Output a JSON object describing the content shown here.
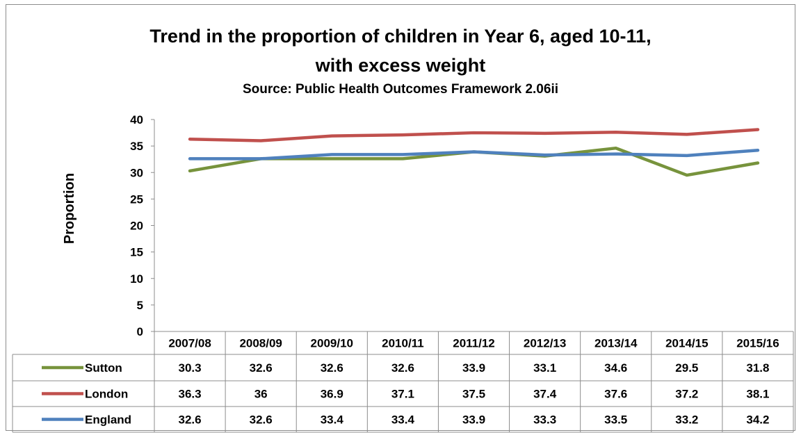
{
  "chart_data": {
    "type": "line",
    "title_line1": "Trend in the proportion of children in Year 6, aged 10-11,",
    "title_line2": "with excess weight",
    "subtitle": "Source: Public Health Outcomes Framework 2.06ii",
    "ylabel": "Proportion",
    "xlabel": "",
    "ylim": [
      0,
      40
    ],
    "yticks": [
      "0",
      "5",
      "10",
      "15",
      "20",
      "25",
      "30",
      "35",
      "40"
    ],
    "categories": [
      "2007/08",
      "2008/09",
      "2009/10",
      "2010/11",
      "2011/12",
      "2012/13",
      "2013/14",
      "2014/15",
      "2015/16"
    ],
    "series": [
      {
        "name": "Sutton",
        "color": "#77933c",
        "values": [
          30.3,
          32.6,
          32.6,
          32.6,
          33.9,
          33.1,
          34.6,
          29.5,
          31.8
        ],
        "labels": [
          "30.3",
          "32.6",
          "32.6",
          "32.6",
          "33.9",
          "33.1",
          "34.6",
          "29.5",
          "31.8"
        ]
      },
      {
        "name": "London",
        "color": "#c0504d",
        "values": [
          36.3,
          36,
          36.9,
          37.1,
          37.5,
          37.4,
          37.6,
          37.2,
          38.1
        ],
        "labels": [
          "36.3",
          "36",
          "36.9",
          "37.1",
          "37.5",
          "37.4",
          "37.6",
          "37.2",
          "38.1"
        ]
      },
      {
        "name": "England",
        "color": "#4f81bd",
        "values": [
          32.6,
          32.6,
          33.4,
          33.4,
          33.9,
          33.3,
          33.5,
          33.2,
          34.2
        ],
        "labels": [
          "32.6",
          "32.6",
          "33.4",
          "33.4",
          "33.9",
          "33.3",
          "33.5",
          "33.2",
          "34.2"
        ]
      }
    ],
    "grid": false,
    "legend": "data-table"
  }
}
